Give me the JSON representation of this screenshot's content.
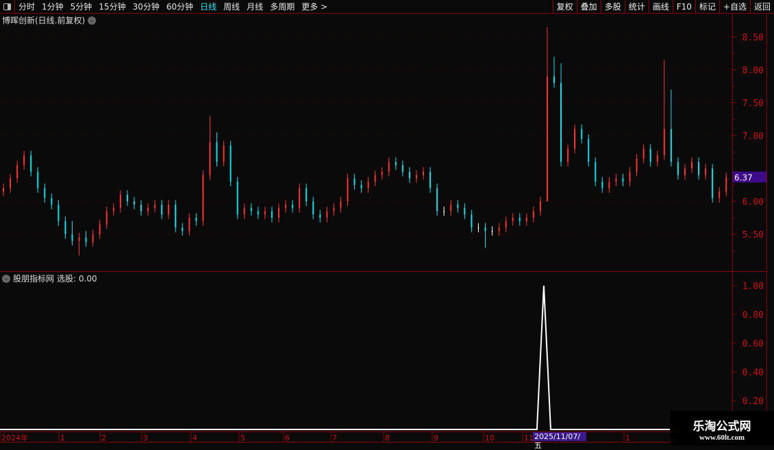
{
  "toolbar": {
    "periods": [
      "分时",
      "1分钟",
      "5分钟",
      "15分钟",
      "30分钟",
      "60分钟",
      "日线",
      "周线",
      "月线",
      "多周期",
      "更多 >"
    ],
    "active_period": "日线",
    "right_buttons": [
      "复权",
      "叠加",
      "多股",
      "统计",
      "画线",
      "F10",
      "标记",
      "+自选",
      "返回"
    ]
  },
  "main_chart": {
    "title": "博晖创新(日线.前复权)",
    "current_price_label": "6.37"
  },
  "indicator": {
    "title": "股朋指标网",
    "value_label": "选股: 0.00"
  },
  "date_axis": {
    "labels": [
      "2024年",
      "1",
      "2",
      "3",
      "4",
      "5",
      "6",
      "7",
      "8",
      "9",
      "10",
      "11",
      "1"
    ],
    "highlight": "2025/11/07/五"
  },
  "watermark": {
    "line1": "乐淘公式网",
    "line2": "www.60lt.com"
  },
  "colors": {
    "up": "#ff3333",
    "down": "#00e5ee",
    "flat": "#ffffff",
    "axis": "#8b0000",
    "axis_text": "#cc1010",
    "price_tag": "#3d0a8a"
  },
  "chart_data": [
    {
      "type": "candlestick",
      "title": "博晖创新(日线.前复权)",
      "ylim": [
        5.1,
        8.7
      ],
      "y_ticks": [
        "8.50",
        "8.00",
        "7.50",
        "7.00",
        "6.00",
        "5.50"
      ],
      "closes": [
        6.2,
        6.35,
        6.55,
        6.7,
        6.45,
        6.2,
        6.05,
        5.95,
        5.7,
        5.5,
        5.4,
        5.45,
        5.38,
        5.5,
        5.65,
        5.85,
        5.9,
        6.1,
        6.0,
        5.95,
        5.85,
        5.9,
        5.95,
        5.8,
        5.95,
        5.6,
        5.55,
        5.75,
        5.7,
        6.4,
        6.9,
        6.6,
        6.85,
        6.3,
        5.8,
        5.9,
        5.85,
        5.8,
        5.85,
        5.75,
        5.9,
        5.95,
        5.9,
        6.2,
        6.0,
        5.8,
        5.75,
        5.85,
        5.9,
        6.0,
        6.35,
        6.25,
        6.2,
        6.3,
        6.4,
        6.45,
        6.6,
        6.55,
        6.45,
        6.35,
        6.4,
        6.45,
        6.2,
        5.85,
        5.85,
        5.95,
        5.9,
        5.8,
        5.6,
        5.6,
        5.55,
        5.55,
        5.6,
        5.7,
        5.75,
        5.7,
        5.75,
        5.85,
        6.0,
        7.9,
        7.8,
        6.6,
        6.8,
        7.1,
        6.95,
        6.6,
        6.3,
        6.2,
        6.3,
        6.35,
        6.3,
        6.45,
        6.65,
        6.8,
        6.6,
        6.7,
        7.1,
        6.6,
        6.4,
        6.5,
        6.6,
        6.4,
        6.5,
        6.05,
        6.15,
        6.37
      ],
      "high_overrides": {
        "10": 5.7,
        "12": 5.55,
        "30": 7.3,
        "31": 7.05,
        "79": 8.65,
        "80": 8.2,
        "81": 8.1,
        "96": 8.15,
        "97": 7.7
      },
      "low_overrides": {
        "11": 5.18,
        "70": 5.3,
        "79": 6.0
      }
    },
    {
      "type": "line",
      "title": "股朋指标网",
      "series_name": "选股",
      "ylim": [
        0,
        1.05
      ],
      "y_ticks": [
        "1.00",
        "0.80",
        "0.60",
        "0.40",
        "0.20"
      ],
      "nonzero": {
        "79": 1.0,
        "80": 0
      }
    }
  ]
}
